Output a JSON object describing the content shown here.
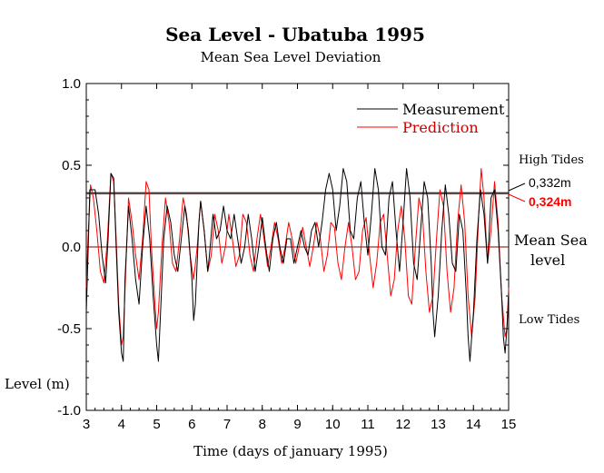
{
  "chart_data": {
    "type": "line",
    "title": "Sea Level - Ubatuba 1995",
    "subtitle": "Mean Sea Level Deviation",
    "xlabel": "Time (days of january 1995)",
    "ylabel": "Level (m)",
    "xlim": [
      3,
      15
    ],
    "ylim": [
      -1.0,
      1.0
    ],
    "xticks": [
      "3",
      "4",
      "5",
      "6",
      "7",
      "8",
      "9",
      "10",
      "11",
      "12",
      "13",
      "14",
      "15"
    ],
    "yticks": [
      "1.0",
      "0.5",
      "0.0",
      "-0.5",
      "-1.0"
    ],
    "legend_position": "top-right",
    "colors": {
      "measurement": "#000000",
      "prediction": "#ff0000",
      "mean_line": "#800000"
    },
    "annotations": {
      "high_tides": "High Tides",
      "low_tides": "Low Tides",
      "mean_sea_level_1": "Mean Sea",
      "mean_sea_level_2": "level",
      "measurement_mean": "0,332m",
      "prediction_mean": "0,324m"
    },
    "reference_lines": [
      {
        "name": "Measurement",
        "y": 0.332
      },
      {
        "name": "Prediction",
        "y": 0.324
      },
      {
        "name": "Mean Sea level",
        "y": 0.0
      }
    ],
    "series": [
      {
        "name": "Measurement",
        "color": "#000000",
        "points": [
          [
            3.0,
            -0.4
          ],
          [
            3.05,
            -0.05
          ],
          [
            3.1,
            0.35
          ],
          [
            3.25,
            0.35
          ],
          [
            3.35,
            0.2
          ],
          [
            3.45,
            -0.05
          ],
          [
            3.55,
            -0.22
          ],
          [
            3.62,
            0.05
          ],
          [
            3.7,
            0.45
          ],
          [
            3.78,
            0.42
          ],
          [
            3.85,
            0.0
          ],
          [
            3.92,
            -0.4
          ],
          [
            4.0,
            -0.65
          ],
          [
            4.05,
            -0.7
          ],
          [
            4.1,
            -0.2
          ],
          [
            4.2,
            0.25
          ],
          [
            4.3,
            0.05
          ],
          [
            4.4,
            -0.2
          ],
          [
            4.5,
            -0.35
          ],
          [
            4.6,
            0.0
          ],
          [
            4.7,
            0.25
          ],
          [
            4.8,
            0.05
          ],
          [
            4.9,
            -0.3
          ],
          [
            5.0,
            -0.6
          ],
          [
            5.05,
            -0.7
          ],
          [
            5.1,
            -0.45
          ],
          [
            5.2,
            0.05
          ],
          [
            5.3,
            0.25
          ],
          [
            5.4,
            0.15
          ],
          [
            5.5,
            -0.05
          ],
          [
            5.6,
            -0.15
          ],
          [
            5.7,
            0.05
          ],
          [
            5.8,
            0.25
          ],
          [
            5.9,
            0.1
          ],
          [
            6.0,
            -0.2
          ],
          [
            6.05,
            -0.45
          ],
          [
            6.1,
            -0.35
          ],
          [
            6.2,
            0.15
          ],
          [
            6.25,
            0.28
          ],
          [
            6.35,
            0.1
          ],
          [
            6.45,
            -0.15
          ],
          [
            6.5,
            -0.05
          ],
          [
            6.6,
            0.2
          ],
          [
            6.7,
            0.05
          ],
          [
            6.8,
            0.1
          ],
          [
            6.9,
            0.25
          ],
          [
            7.0,
            0.1
          ],
          [
            7.1,
            0.05
          ],
          [
            7.2,
            0.2
          ],
          [
            7.3,
            0.05
          ],
          [
            7.4,
            -0.1
          ],
          [
            7.5,
            0.0
          ],
          [
            7.6,
            0.2
          ],
          [
            7.7,
            0.05
          ],
          [
            7.8,
            -0.15
          ],
          [
            7.9,
            0.0
          ],
          [
            8.0,
            0.18
          ],
          [
            8.1,
            0.0
          ],
          [
            8.2,
            -0.15
          ],
          [
            8.3,
            0.05
          ],
          [
            8.4,
            0.15
          ],
          [
            8.5,
            0.0
          ],
          [
            8.6,
            -0.1
          ],
          [
            8.7,
            0.05
          ],
          [
            8.8,
            0.05
          ],
          [
            8.9,
            -0.1
          ],
          [
            9.0,
            0.0
          ],
          [
            9.1,
            0.1
          ],
          [
            9.2,
            0.0
          ],
          [
            9.3,
            -0.05
          ],
          [
            9.4,
            0.1
          ],
          [
            9.5,
            0.15
          ],
          [
            9.6,
            0.0
          ],
          [
            9.7,
            0.15
          ],
          [
            9.8,
            0.35
          ],
          [
            9.9,
            0.45
          ],
          [
            10.0,
            0.35
          ],
          [
            10.1,
            0.1
          ],
          [
            10.2,
            0.25
          ],
          [
            10.3,
            0.48
          ],
          [
            10.4,
            0.4
          ],
          [
            10.5,
            0.1
          ],
          [
            10.6,
            0.05
          ],
          [
            10.7,
            0.3
          ],
          [
            10.8,
            0.4
          ],
          [
            10.9,
            0.15
          ],
          [
            11.0,
            -0.05
          ],
          [
            11.1,
            0.2
          ],
          [
            11.2,
            0.48
          ],
          [
            11.3,
            0.35
          ],
          [
            11.4,
            0.0
          ],
          [
            11.5,
            -0.05
          ],
          [
            11.6,
            0.3
          ],
          [
            11.7,
            0.4
          ],
          [
            11.8,
            0.1
          ],
          [
            11.9,
            -0.15
          ],
          [
            12.0,
            0.15
          ],
          [
            12.1,
            0.48
          ],
          [
            12.2,
            0.3
          ],
          [
            12.3,
            -0.1
          ],
          [
            12.4,
            -0.2
          ],
          [
            12.5,
            0.1
          ],
          [
            12.6,
            0.4
          ],
          [
            12.7,
            0.3
          ],
          [
            12.8,
            -0.1
          ],
          [
            12.85,
            -0.4
          ],
          [
            12.9,
            -0.55
          ],
          [
            13.0,
            -0.3
          ],
          [
            13.1,
            0.1
          ],
          [
            13.2,
            0.38
          ],
          [
            13.3,
            0.2
          ],
          [
            13.4,
            -0.1
          ],
          [
            13.5,
            -0.15
          ],
          [
            13.6,
            0.2
          ],
          [
            13.7,
            0.1
          ],
          [
            13.8,
            -0.3
          ],
          [
            13.85,
            -0.55
          ],
          [
            13.9,
            -0.7
          ],
          [
            14.0,
            -0.4
          ],
          [
            14.1,
            0.05
          ],
          [
            14.2,
            0.35
          ],
          [
            14.3,
            0.2
          ],
          [
            14.4,
            -0.1
          ],
          [
            14.5,
            0.3
          ],
          [
            14.6,
            0.35
          ],
          [
            14.7,
            0.1
          ],
          [
            14.8,
            -0.3
          ],
          [
            14.85,
            -0.55
          ],
          [
            14.9,
            -0.65
          ],
          [
            14.95,
            -0.5
          ],
          [
            15.0,
            -0.3
          ]
        ]
      },
      {
        "name": "Prediction",
        "color": "#ff0000",
        "points": [
          [
            3.0,
            -0.25
          ],
          [
            3.05,
            0.05
          ],
          [
            3.12,
            0.38
          ],
          [
            3.2,
            0.3
          ],
          [
            3.3,
            0.1
          ],
          [
            3.4,
            -0.15
          ],
          [
            3.5,
            -0.22
          ],
          [
            3.6,
            0.05
          ],
          [
            3.7,
            0.45
          ],
          [
            3.78,
            0.4
          ],
          [
            3.85,
            0.05
          ],
          [
            3.92,
            -0.35
          ],
          [
            4.0,
            -0.6
          ],
          [
            4.05,
            -0.55
          ],
          [
            4.12,
            -0.15
          ],
          [
            4.2,
            0.3
          ],
          [
            4.3,
            0.15
          ],
          [
            4.4,
            -0.05
          ],
          [
            4.5,
            -0.2
          ],
          [
            4.6,
            0.05
          ],
          [
            4.7,
            0.4
          ],
          [
            4.78,
            0.35
          ],
          [
            4.85,
            0.0
          ],
          [
            4.95,
            -0.35
          ],
          [
            5.0,
            -0.5
          ],
          [
            5.05,
            -0.4
          ],
          [
            5.15,
            0.0
          ],
          [
            5.25,
            0.3
          ],
          [
            5.35,
            0.15
          ],
          [
            5.45,
            -0.1
          ],
          [
            5.55,
            -0.15
          ],
          [
            5.65,
            0.05
          ],
          [
            5.75,
            0.3
          ],
          [
            5.85,
            0.2
          ],
          [
            5.95,
            -0.05
          ],
          [
            6.05,
            -0.2
          ],
          [
            6.15,
            0.0
          ],
          [
            6.25,
            0.28
          ],
          [
            6.35,
            0.1
          ],
          [
            6.45,
            -0.15
          ],
          [
            6.55,
            -0.05
          ],
          [
            6.65,
            0.2
          ],
          [
            6.75,
            0.1
          ],
          [
            6.85,
            -0.1
          ],
          [
            6.95,
            0.0
          ],
          [
            7.05,
            0.2
          ],
          [
            7.15,
            0.05
          ],
          [
            7.25,
            -0.12
          ],
          [
            7.35,
            -0.05
          ],
          [
            7.45,
            0.2
          ],
          [
            7.55,
            0.15
          ],
          [
            7.65,
            -0.05
          ],
          [
            7.75,
            -0.15
          ],
          [
            7.85,
            0.05
          ],
          [
            7.95,
            0.2
          ],
          [
            8.05,
            0.05
          ],
          [
            8.15,
            -0.12
          ],
          [
            8.25,
            0.0
          ],
          [
            8.35,
            0.15
          ],
          [
            8.45,
            0.05
          ],
          [
            8.55,
            -0.1
          ],
          [
            8.65,
            0.0
          ],
          [
            8.75,
            0.15
          ],
          [
            8.85,
            0.05
          ],
          [
            8.95,
            -0.1
          ],
          [
            9.05,
            0.0
          ],
          [
            9.15,
            0.12
          ],
          [
            9.25,
            0.0
          ],
          [
            9.35,
            -0.12
          ],
          [
            9.45,
            0.0
          ],
          [
            9.55,
            0.15
          ],
          [
            9.65,
            0.05
          ],
          [
            9.75,
            -0.15
          ],
          [
            9.85,
            -0.05
          ],
          [
            9.95,
            0.15
          ],
          [
            10.05,
            0.12
          ],
          [
            10.15,
            -0.1
          ],
          [
            10.25,
            -0.2
          ],
          [
            10.35,
            0.0
          ],
          [
            10.45,
            0.15
          ],
          [
            10.55,
            0.0
          ],
          [
            10.65,
            -0.2
          ],
          [
            10.75,
            -0.15
          ],
          [
            10.85,
            0.1
          ],
          [
            10.95,
            0.18
          ],
          [
            11.05,
            -0.05
          ],
          [
            11.15,
            -0.25
          ],
          [
            11.25,
            -0.1
          ],
          [
            11.35,
            0.15
          ],
          [
            11.45,
            0.2
          ],
          [
            11.55,
            -0.05
          ],
          [
            11.65,
            -0.3
          ],
          [
            11.75,
            -0.2
          ],
          [
            11.85,
            0.1
          ],
          [
            11.95,
            0.25
          ],
          [
            12.05,
            0.05
          ],
          [
            12.15,
            -0.3
          ],
          [
            12.25,
            -0.35
          ],
          [
            12.35,
            0.0
          ],
          [
            12.45,
            0.3
          ],
          [
            12.55,
            0.2
          ],
          [
            12.65,
            -0.15
          ],
          [
            12.75,
            -0.4
          ],
          [
            12.85,
            -0.3
          ],
          [
            12.95,
            0.05
          ],
          [
            13.05,
            0.35
          ],
          [
            13.15,
            0.25
          ],
          [
            13.25,
            -0.15
          ],
          [
            13.35,
            -0.4
          ],
          [
            13.45,
            -0.25
          ],
          [
            13.55,
            0.15
          ],
          [
            13.65,
            0.38
          ],
          [
            13.75,
            0.15
          ],
          [
            13.85,
            -0.3
          ],
          [
            13.95,
            -0.55
          ],
          [
            14.05,
            -0.3
          ],
          [
            14.15,
            0.2
          ],
          [
            14.22,
            0.48
          ],
          [
            14.3,
            0.3
          ],
          [
            14.4,
            -0.1
          ],
          [
            14.5,
            0.1
          ],
          [
            14.6,
            0.4
          ],
          [
            14.7,
            0.15
          ],
          [
            14.8,
            -0.3
          ],
          [
            14.9,
            -0.55
          ],
          [
            14.95,
            -0.5
          ],
          [
            15.0,
            -0.25
          ]
        ]
      }
    ]
  }
}
